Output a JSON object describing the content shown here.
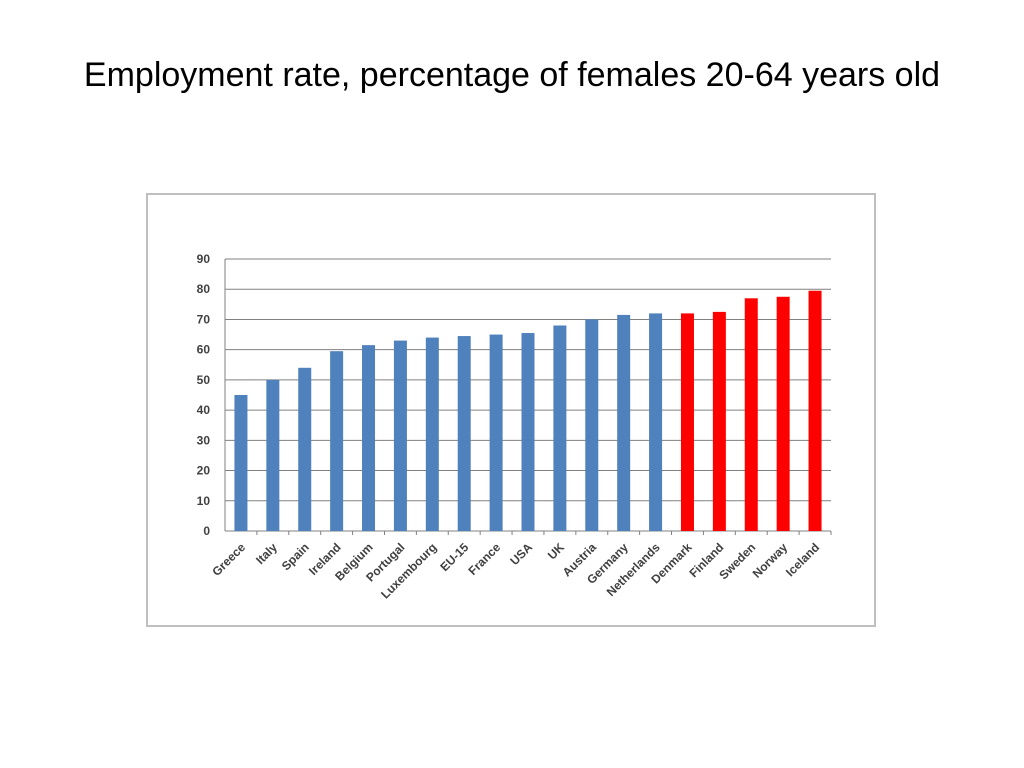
{
  "slide": {
    "title": "Employment rate, percentage of females 20-64 years old"
  },
  "chart_data": {
    "type": "bar",
    "title": "",
    "xlabel": "",
    "ylabel": "",
    "ylim": [
      0,
      90
    ],
    "yticks": [
      0,
      10,
      20,
      30,
      40,
      50,
      60,
      70,
      80,
      90
    ],
    "grid": true,
    "categories": [
      "Greece",
      "Italy",
      "Spain",
      "Ireland",
      "Belgium",
      "Portugal",
      "Luxembourg",
      "EU-15",
      "France",
      "USA",
      "UK",
      "Austria",
      "Germany",
      "Netherlands",
      "Denmark",
      "Finland",
      "Sweden",
      "Norway",
      "Iceland"
    ],
    "values": [
      45,
      50,
      54,
      59.5,
      61.5,
      63,
      64,
      64.5,
      65,
      65.5,
      68,
      70,
      71.5,
      72,
      72,
      72.5,
      77,
      77.5,
      79.5
    ],
    "highlighted": [
      "Denmark",
      "Finland",
      "Sweden",
      "Norway",
      "Iceland"
    ],
    "colors": {
      "default_bar": "#4f81bd",
      "highlight_bar": "#ff0000",
      "gridline": "#808080",
      "axis": "#808080",
      "tick_label": "#404040"
    }
  }
}
